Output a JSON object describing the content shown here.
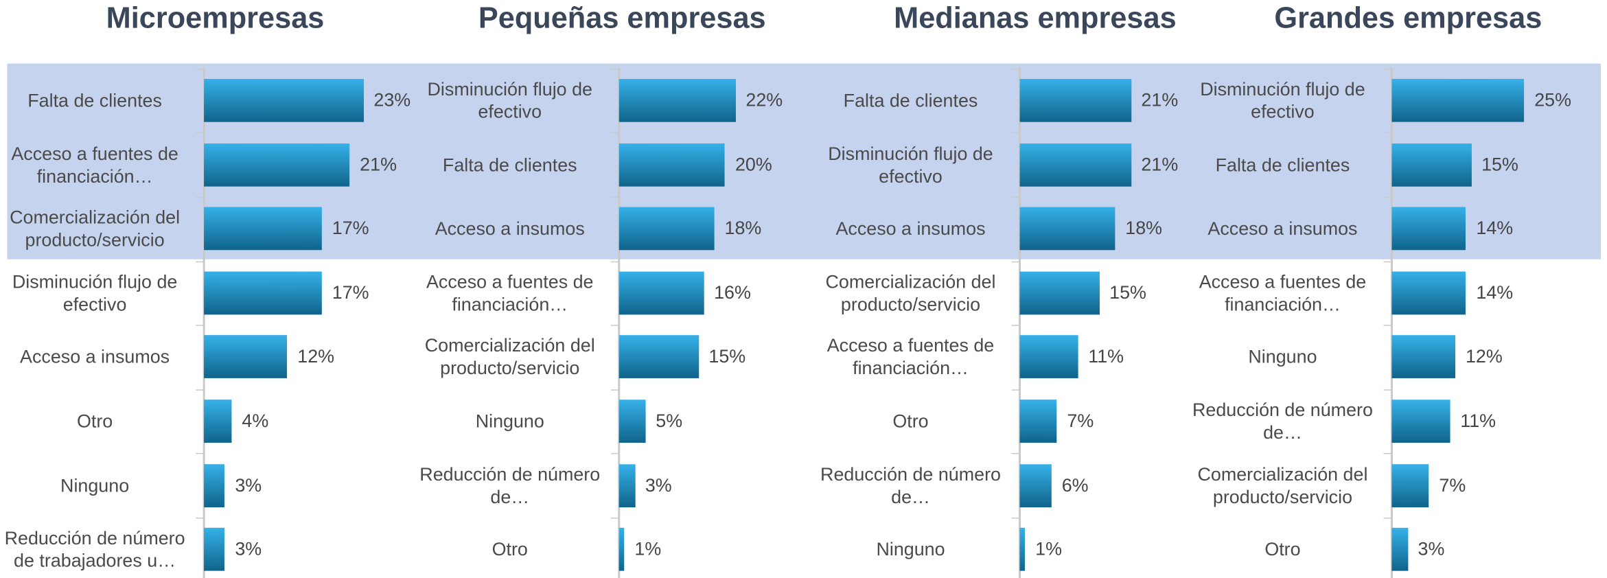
{
  "chart_data": [
    {
      "type": "barh",
      "title": "Microempresas",
      "categories": [
        "Falta de clientes",
        "Acceso a fuentes de financiación…",
        "Comercialización del producto/servicio",
        "Disminución flujo de efectivo",
        "Acceso a insumos",
        "Otro",
        "Ninguno",
        "Reducción de número de trabajadores u…"
      ],
      "values": [
        23,
        21,
        17,
        17,
        12,
        4,
        3,
        3
      ],
      "value_labels": [
        "23%",
        "21%",
        "17%",
        "17%",
        "12%",
        "4%",
        "3%",
        "3%"
      ],
      "xlim": [
        0,
        30
      ],
      "color": "#1aa6e6"
    },
    {
      "type": "barh",
      "title": "Pequeñas empresas",
      "categories": [
        "Disminución flujo de efectivo",
        "Falta de clientes",
        "Acceso a insumos",
        "Acceso a fuentes de financiación…",
        "Comercialización del producto/servicio",
        "Ninguno",
        "Reducción de número de…",
        "Otro"
      ],
      "values": [
        22,
        20,
        18,
        16,
        15,
        5,
        3,
        1
      ],
      "value_labels": [
        "22%",
        "20%",
        "18%",
        "16%",
        "15%",
        "5%",
        "3%",
        "1%"
      ],
      "xlim": [
        0,
        30
      ],
      "color": "#1aa6e6"
    },
    {
      "type": "barh",
      "title": "Medianas empresas",
      "categories": [
        "Falta de clientes",
        "Disminución flujo de efectivo",
        "Acceso a insumos",
        "Comercialización del producto/servicio",
        "Acceso a fuentes de financiación…",
        "Otro",
        "Reducción de número de…",
        "Ninguno"
      ],
      "values": [
        21,
        21,
        18,
        15,
        11,
        7,
        6,
        1
      ],
      "value_labels": [
        "21%",
        "21%",
        "18%",
        "15%",
        "11%",
        "7%",
        "6%",
        "1%"
      ],
      "xlim": [
        0,
        30
      ],
      "color": "#1aa6e6"
    },
    {
      "type": "barh",
      "title": "Grandes empresas",
      "categories": [
        "Disminución flujo de efectivo",
        "Falta de clientes",
        "Acceso a insumos",
        "Acceso a fuentes de financiación…",
        "Ninguno",
        "Reducción de número de…",
        "Comercialización del producto/servicio",
        "Otro"
      ],
      "values": [
        25,
        15,
        14,
        14,
        12,
        11,
        7,
        3
      ],
      "value_labels": [
        "25%",
        "15%",
        "14%",
        "14%",
        "12%",
        "11%",
        "7%",
        "3%"
      ],
      "xlim": [
        0,
        30
      ],
      "color": "#1aa6e6"
    }
  ]
}
